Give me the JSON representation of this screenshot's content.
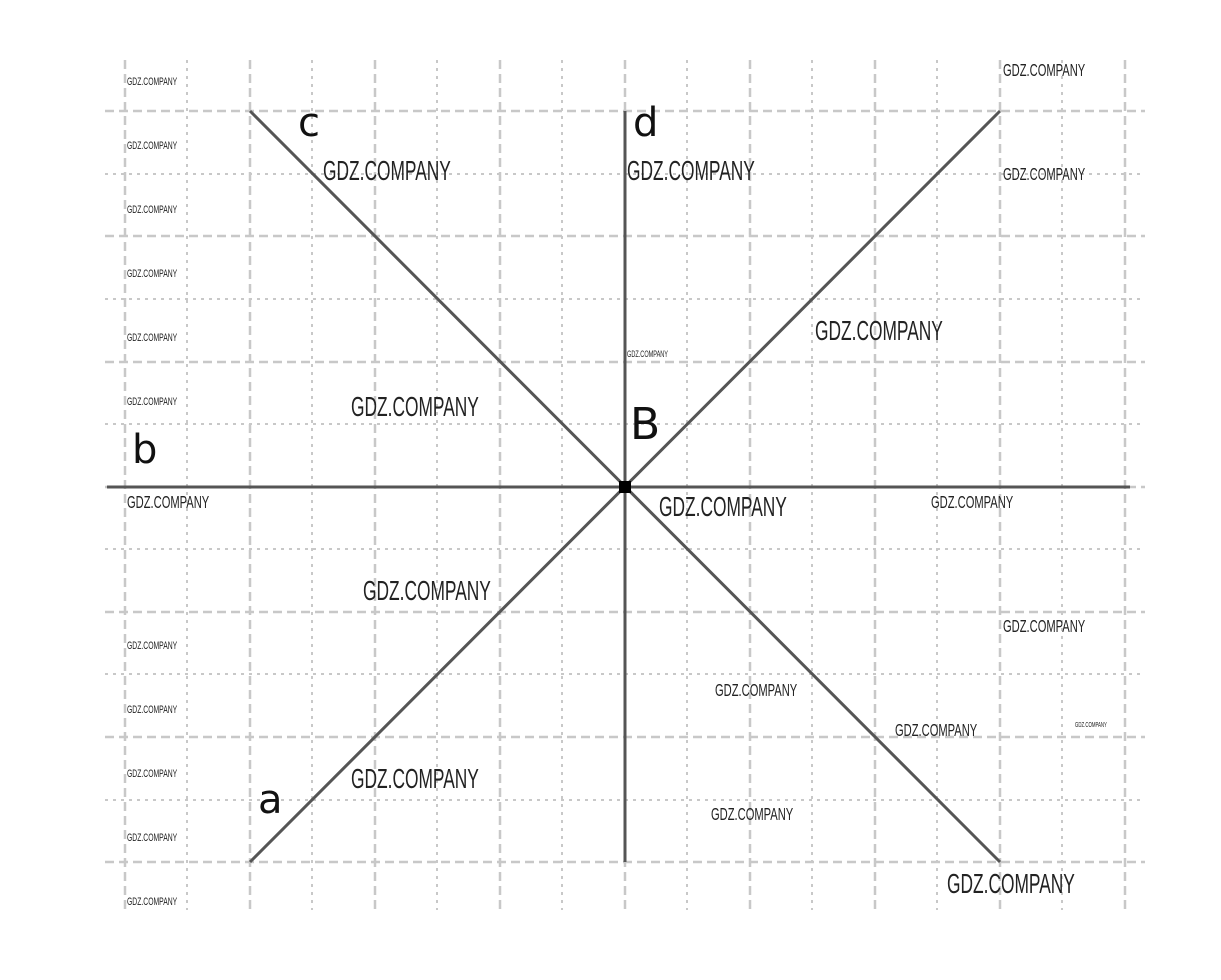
{
  "diagram": {
    "lines": [
      {
        "label": "a",
        "direction": "diagonal rising"
      },
      {
        "label": "b",
        "direction": "horizontal"
      },
      {
        "label": "c",
        "direction": "diagonal falling"
      },
      {
        "label": "d",
        "direction": "vertical"
      }
    ],
    "point": {
      "label": "B"
    },
    "watermark": "GDZ.COMPANY",
    "colors": {
      "line": "#555555",
      "grid": "#c8c8c8",
      "point": "#000000"
    }
  }
}
